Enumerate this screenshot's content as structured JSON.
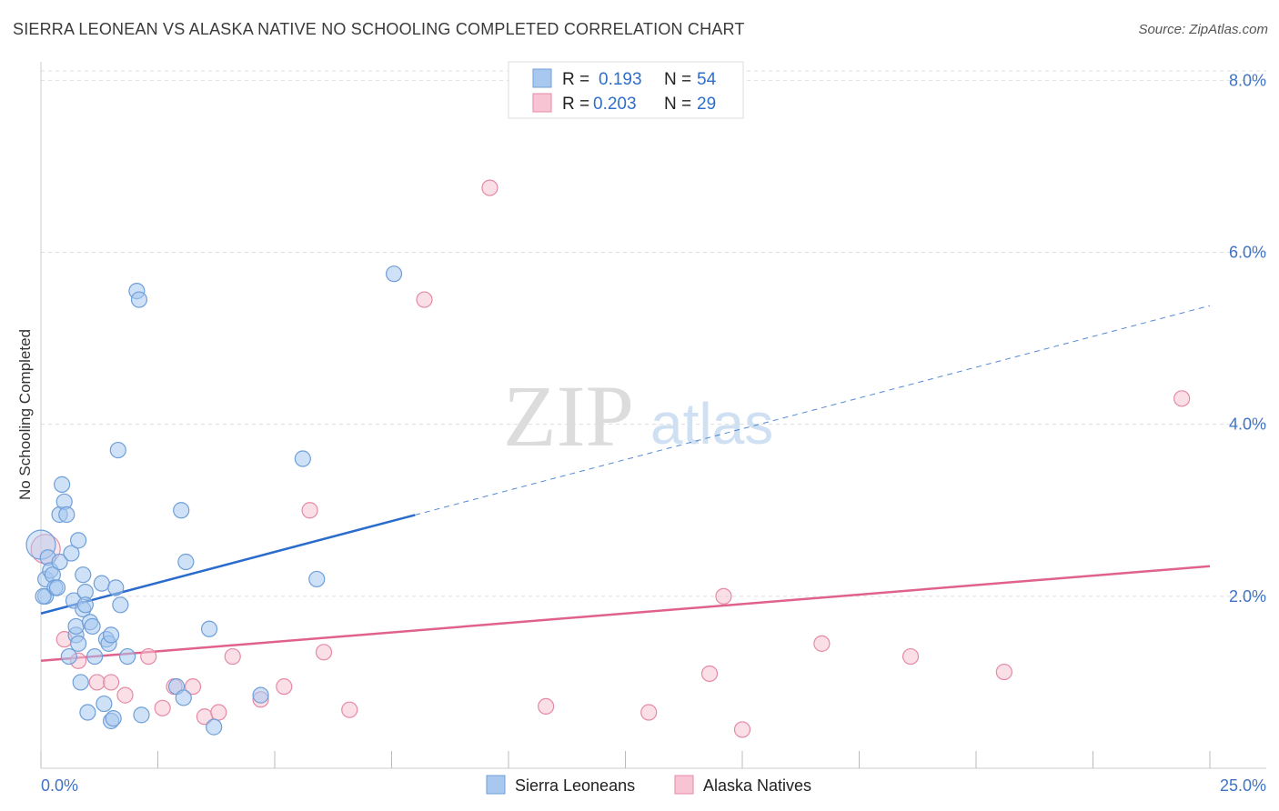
{
  "header": {
    "title": "SIERRA LEONEAN VS ALASKA NATIVE NO SCHOOLING COMPLETED CORRELATION CHART",
    "source": "Source: ZipAtlas.com"
  },
  "watermark": {
    "zip": "ZIP",
    "atlas": "atlas"
  },
  "legend_top": {
    "r_label": "R =",
    "n_label": "N =",
    "rows": [
      {
        "r": "0.193",
        "n": "54",
        "color": "#a8c8f0"
      },
      {
        "r": "0.203",
        "n": "29",
        "color": "#f7b8cc"
      }
    ]
  },
  "colors": {
    "blue_fill": "#a8c8f0",
    "blue_stroke": "#6f9fd8",
    "blue_line": "#2a6ccc",
    "pink_fill": "#f7c4d3",
    "pink_stroke": "#e58aa6",
    "pink_line": "#e0628c",
    "grid": "#dddddd",
    "tick_label": "#3f73c6"
  },
  "chart_data": {
    "type": "scatter",
    "title": "SIERRA LEONEAN VS ALASKA NATIVE NO SCHOOLING COMPLETED CORRELATION CHART",
    "xlabel": "",
    "ylabel": "No Schooling Completed",
    "xlim": [
      0,
      25
    ],
    "ylim": [
      0,
      8.3
    ],
    "x_tick_labels": [
      "0.0%",
      "25.0%"
    ],
    "y_ticks": [
      2,
      4,
      6,
      8
    ],
    "y_tick_labels": [
      "2.0%",
      "4.0%",
      "6.0%",
      "8.0%"
    ],
    "legend_position": "top-center",
    "series": [
      {
        "name": "Sierra Leoneans",
        "r": 0.193,
        "n": 54,
        "points": [
          [
            0.0,
            2.6
          ],
          [
            0.1,
            2.2
          ],
          [
            0.1,
            2.0
          ],
          [
            0.15,
            2.45
          ],
          [
            0.2,
            2.3
          ],
          [
            0.25,
            2.25
          ],
          [
            0.3,
            2.1
          ],
          [
            0.35,
            2.1
          ],
          [
            0.4,
            2.4
          ],
          [
            0.4,
            2.95
          ],
          [
            0.45,
            3.3
          ],
          [
            0.5,
            3.1
          ],
          [
            0.55,
            2.95
          ],
          [
            0.6,
            1.3
          ],
          [
            0.65,
            2.5
          ],
          [
            0.7,
            1.95
          ],
          [
            0.75,
            1.55
          ],
          [
            0.75,
            1.65
          ],
          [
            0.8,
            1.45
          ],
          [
            0.8,
            2.65
          ],
          [
            0.85,
            1.0
          ],
          [
            0.9,
            1.85
          ],
          [
            0.9,
            2.25
          ],
          [
            0.95,
            2.05
          ],
          [
            0.95,
            1.9
          ],
          [
            1.0,
            0.65
          ],
          [
            1.05,
            1.7
          ],
          [
            1.1,
            1.65
          ],
          [
            1.15,
            1.3
          ],
          [
            1.3,
            2.15
          ],
          [
            1.35,
            0.75
          ],
          [
            1.4,
            1.5
          ],
          [
            1.45,
            1.45
          ],
          [
            1.5,
            1.55
          ],
          [
            1.5,
            0.55
          ],
          [
            1.55,
            0.58
          ],
          [
            1.6,
            2.1
          ],
          [
            1.65,
            3.7
          ],
          [
            1.7,
            1.9
          ],
          [
            1.85,
            1.3
          ],
          [
            2.05,
            5.55
          ],
          [
            2.1,
            5.45
          ],
          [
            2.15,
            0.62
          ],
          [
            2.9,
            0.95
          ],
          [
            3.0,
            3.0
          ],
          [
            3.05,
            0.82
          ],
          [
            3.1,
            2.4
          ],
          [
            3.6,
            1.62
          ],
          [
            3.7,
            0.48
          ],
          [
            4.7,
            0.85
          ],
          [
            5.6,
            3.6
          ],
          [
            5.9,
            2.2
          ],
          [
            7.55,
            5.75
          ],
          [
            0.05,
            2.0
          ]
        ],
        "trend": {
          "x_start": 0.0,
          "y_start": 1.8,
          "x_solid_end": 8.0,
          "x_end": 25.0,
          "y_end": 5.38
        }
      },
      {
        "name": "Alaska Natives",
        "r": 0.203,
        "n": 29,
        "points": [
          [
            0.1,
            2.55
          ],
          [
            0.5,
            1.5
          ],
          [
            0.8,
            1.25
          ],
          [
            1.2,
            1.0
          ],
          [
            1.5,
            1.0
          ],
          [
            1.8,
            0.85
          ],
          [
            2.3,
            1.3
          ],
          [
            2.6,
            0.7
          ],
          [
            2.85,
            0.95
          ],
          [
            3.25,
            0.95
          ],
          [
            3.5,
            0.6
          ],
          [
            3.8,
            0.65
          ],
          [
            4.1,
            1.3
          ],
          [
            4.7,
            0.8
          ],
          [
            5.2,
            0.95
          ],
          [
            5.75,
            3.0
          ],
          [
            6.05,
            1.35
          ],
          [
            6.6,
            0.68
          ],
          [
            8.2,
            5.45
          ],
          [
            9.6,
            6.75
          ],
          [
            10.8,
            0.72
          ],
          [
            13.0,
            0.65
          ],
          [
            14.3,
            1.1
          ],
          [
            14.6,
            2.0
          ],
          [
            15.0,
            0.45
          ],
          [
            16.7,
            1.45
          ],
          [
            18.6,
            1.3
          ],
          [
            20.6,
            1.12
          ],
          [
            24.4,
            4.3
          ]
        ],
        "trend": {
          "x_start": 0.0,
          "y_start": 1.25,
          "x_end": 25.0,
          "y_end": 2.35
        }
      }
    ]
  },
  "legend_bottom": {
    "items": [
      {
        "label": "Sierra Leoneans",
        "color": "#a8c8f0"
      },
      {
        "label": "Alaska Natives",
        "color": "#f7c4d3"
      }
    ]
  }
}
